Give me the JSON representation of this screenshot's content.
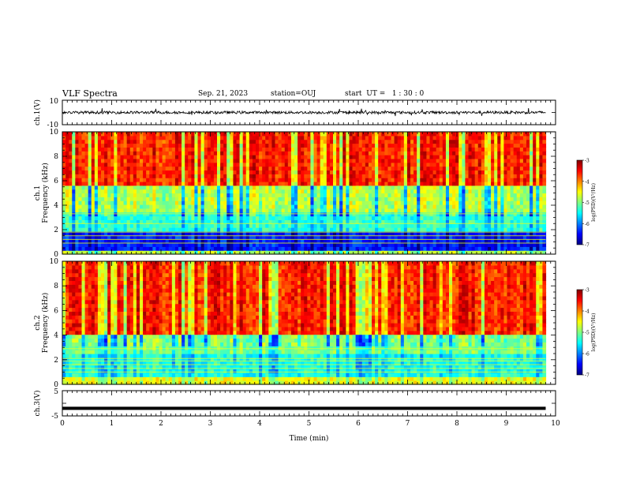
{
  "header": {
    "title": "VLF Spectra",
    "date": "Sep. 21, 2023",
    "station": "station=OUJ",
    "start": "start  UT =   1 : 30 : 0"
  },
  "axes": {
    "ch1_label": "ch.1(V)",
    "freq_label": "Frequency (kHz)",
    "ch1_spec_label": "ch.1",
    "ch2_spec_label": "ch.2",
    "ch3_label": "ch.3(V)",
    "xlabel": "Time (min)",
    "colorbar_label": "log(PSD)(V²/Hz)"
  },
  "colors": {
    "jet": [
      "#00007f",
      "#0000ff",
      "#0080ff",
      "#00ffff",
      "#80ff80",
      "#ffff00",
      "#ff8000",
      "#ff0000",
      "#7f0000"
    ]
  },
  "chart_data": [
    {
      "type": "line",
      "name": "ch1-waveform",
      "ylabel": "ch.1(V)",
      "ylim": [
        -10,
        10
      ],
      "yticks": [
        "10",
        "-10"
      ],
      "xlim": [
        0,
        10
      ],
      "series": [
        {
          "values_description_range": [
            -3,
            3
          ]
        }
      ]
    },
    {
      "type": "heatmap",
      "name": "ch1-spectrogram",
      "ylabel": "Frequency (kHz)",
      "ylim": [
        0,
        10
      ],
      "yticks": [
        "0",
        "2",
        "4",
        "6",
        "8",
        "10"
      ],
      "xlim": [
        0,
        10
      ],
      "colorbar": {
        "range": [
          -7,
          -3
        ],
        "ticks": [
          "-3",
          "-4",
          "-5",
          "-6",
          "-7"
        ],
        "label": "log(PSD)(V²/Hz)"
      }
    },
    {
      "type": "heatmap",
      "name": "ch2-spectrogram",
      "ylabel": "Frequency (kHz)",
      "ylim": [
        0,
        10
      ],
      "yticks": [
        "0",
        "2",
        "4",
        "6",
        "8",
        "10"
      ],
      "xlim": [
        0,
        10
      ],
      "colorbar": {
        "range": [
          -7,
          -3
        ],
        "ticks": [
          "-3",
          "-4",
          "-5",
          "-6",
          "-7"
        ],
        "label": "log(PSD)(V²/Hz)"
      }
    },
    {
      "type": "line",
      "name": "ch3-waveform",
      "ylabel": "ch.3(V)",
      "ylim": [
        -5,
        5
      ],
      "yticks": [
        "5",
        "-5"
      ],
      "xlim": [
        0,
        10
      ],
      "series": [
        {
          "constant": -2
        }
      ]
    }
  ],
  "xaxis": {
    "ticks": [
      "0",
      "1",
      "2",
      "3",
      "4",
      "5",
      "6",
      "7",
      "8",
      "9",
      "10"
    ],
    "data_end_min": 9.8
  }
}
